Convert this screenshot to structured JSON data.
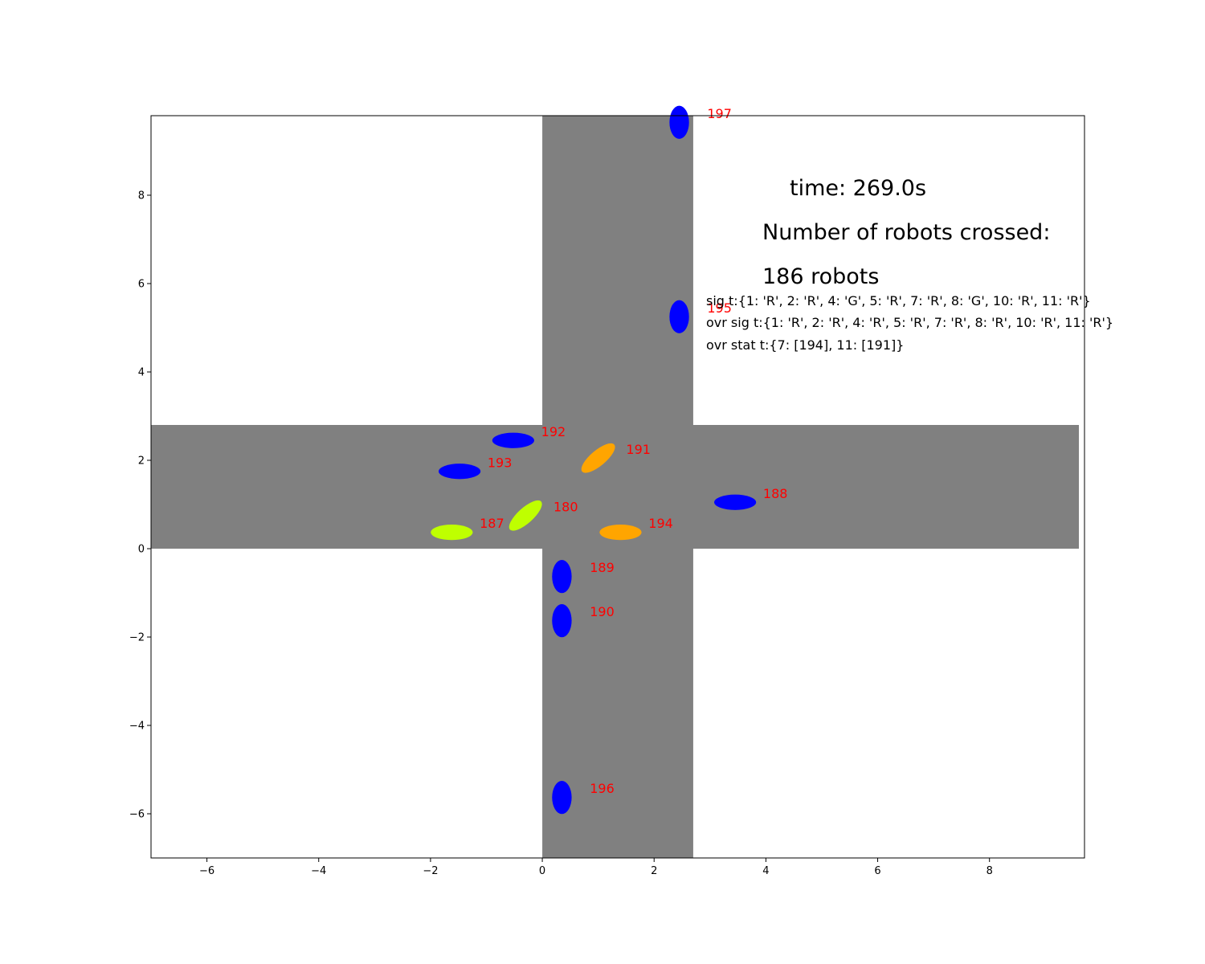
{
  "chart_data": {
    "type": "scatter",
    "title": "",
    "xlabel": "",
    "ylabel": "",
    "xlim": [
      -7,
      9.7
    ],
    "ylim": [
      -7,
      9.8
    ],
    "grid": false,
    "x_ticks": [
      -6,
      -4,
      -2,
      0,
      2,
      4,
      6,
      8
    ],
    "y_ticks": [
      -6,
      -4,
      -2,
      0,
      2,
      4,
      6,
      8
    ],
    "x_tick_labels": [
      "−6",
      "−4",
      "−2",
      "0",
      "2",
      "4",
      "6",
      "8"
    ],
    "y_tick_labels": [
      "−6",
      "−4",
      "−2",
      "0",
      "2",
      "4",
      "6",
      "8"
    ],
    "roads": [
      {
        "name": "vertical road",
        "x": [
          0,
          2.7
        ],
        "y": [
          -7,
          9.8
        ],
        "color": "#808080"
      },
      {
        "name": "horizontal road",
        "x": [
          -7,
          9.6
        ],
        "y": [
          0,
          2.8
        ],
        "color": "#808080"
      }
    ],
    "robots": [
      {
        "id": "197",
        "x": 2.45,
        "y": 9.65,
        "width": 0.35,
        "height": 0.75,
        "angle": 0,
        "color": "#0000ff"
      },
      {
        "id": "195",
        "x": 2.45,
        "y": 5.25,
        "width": 0.35,
        "height": 0.75,
        "angle": 0,
        "color": "#0000ff"
      },
      {
        "id": "192",
        "x": -0.52,
        "y": 2.45,
        "width": 0.75,
        "height": 0.35,
        "angle": 0,
        "color": "#0000ff"
      },
      {
        "id": "191",
        "x": 1.0,
        "y": 2.05,
        "width": 0.75,
        "height": 0.35,
        "angle": 40,
        "color": "#ffa500"
      },
      {
        "id": "193",
        "x": -1.48,
        "y": 1.75,
        "width": 0.75,
        "height": 0.35,
        "angle": 0,
        "color": "#0000ff"
      },
      {
        "id": "188",
        "x": 3.45,
        "y": 1.05,
        "width": 0.75,
        "height": 0.35,
        "angle": 0,
        "color": "#0000ff"
      },
      {
        "id": "180",
        "x": -0.3,
        "y": 0.75,
        "width": 0.75,
        "height": 0.35,
        "angle": 42,
        "color": "#bfff00"
      },
      {
        "id": "187",
        "x": -1.62,
        "y": 0.37,
        "width": 0.75,
        "height": 0.35,
        "angle": 0,
        "color": "#bfff00"
      },
      {
        "id": "194",
        "x": 1.4,
        "y": 0.37,
        "width": 0.75,
        "height": 0.35,
        "angle": 0,
        "color": "#ffa500"
      },
      {
        "id": "189",
        "x": 0.35,
        "y": -0.63,
        "width": 0.35,
        "height": 0.75,
        "angle": 0,
        "color": "#0000ff"
      },
      {
        "id": "190",
        "x": 0.35,
        "y": -1.63,
        "width": 0.35,
        "height": 0.75,
        "angle": 0,
        "color": "#0000ff"
      },
      {
        "id": "196",
        "x": 0.35,
        "y": -5.63,
        "width": 0.35,
        "height": 0.75,
        "angle": 0,
        "color": "#0000ff"
      }
    ],
    "label_color": "#ff0000"
  },
  "overlay": {
    "time": "time: 269.0s",
    "crossed_heading": "Number of robots crossed:",
    "crossed_count": "186 robots",
    "sig": "sig t:{1: 'R', 2: 'R', 4: 'G', 5: 'R', 7: 'R', 8: 'G', 10: 'R', 11: 'R'}",
    "ovr_sig": "ovr sig t:{1: 'R', 2: 'R', 4: 'R', 5: 'R', 7: 'R', 8: 'R', 10: 'R', 11: 'R'}",
    "ovr_stat": "ovr stat t:{7: [194], 11: [191]}"
  }
}
